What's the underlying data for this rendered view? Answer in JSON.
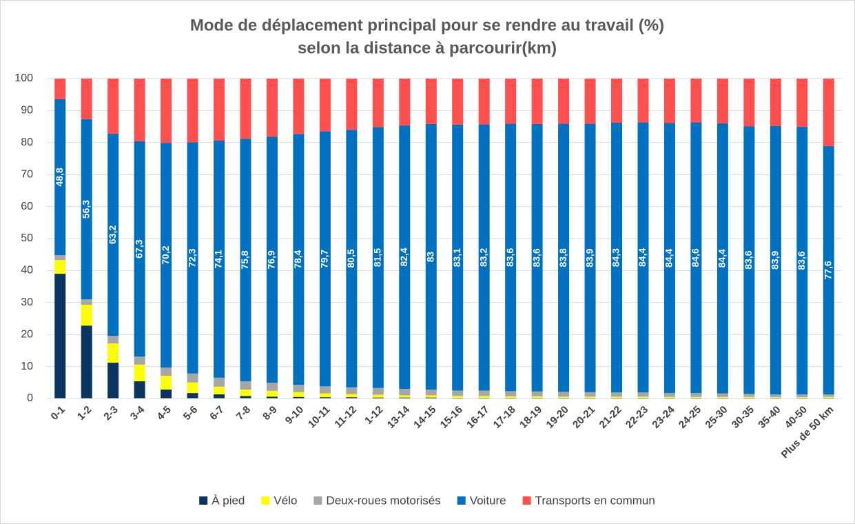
{
  "chart_data": {
    "type": "stacked_bar",
    "title": [
      "Mode de déplacement principal pour se rendre au travail (%)",
      "selon la distance à parcourir(km)"
    ],
    "categories": [
      "0-1",
      "1-2",
      "2-3",
      "3-4",
      "4-5",
      "5-6",
      "6-7",
      "7-8",
      "8-9",
      "9-10",
      "10-11",
      "11-12",
      "1-12",
      "13-14",
      "14-15",
      "15-16",
      "16-17",
      "17-18",
      "18-19",
      "19-20",
      "20-21",
      "21-22",
      "22-23",
      "23-24",
      "24-25",
      "25-30",
      "30-35",
      "35-40",
      "40-50",
      "Plus de 50 km"
    ],
    "series": [
      {
        "name": "À pied",
        "color": "#0b3560",
        "values": [
          39,
          22.8,
          11.2,
          5.4,
          2.8,
          1.7,
          1.3,
          0.8,
          0.6,
          0.5,
          0.4,
          0.4,
          0.3,
          0.3,
          0.3,
          0.2,
          0.2,
          0.2,
          0.2,
          0.2,
          0.2,
          0.2,
          0.2,
          0.2,
          0.2,
          0.2,
          0.2,
          0.2,
          0.2,
          0.2
        ]
      },
      {
        "name": "Vélo",
        "color": "#ffff00",
        "values": [
          4.3,
          6.5,
          6.0,
          5.2,
          4.3,
          3.3,
          2.4,
          2.0,
          1.8,
          1.5,
          1.2,
          1.0,
          0.9,
          0.7,
          0.7,
          0.6,
          0.6,
          0.5,
          0.5,
          0.4,
          0.4,
          0.4,
          0.4,
          0.3,
          0.3,
          0.3,
          0.3,
          0.2,
          0.2,
          0.3
        ]
      },
      {
        "name": "Deux-roues motorisés",
        "color": "#a6a6a6",
        "values": [
          1.5,
          1.7,
          2.4,
          2.5,
          2.6,
          2.8,
          2.8,
          2.6,
          2.5,
          2.3,
          2.2,
          2.1,
          2.1,
          2.0,
          1.8,
          1.7,
          1.7,
          1.6,
          1.5,
          1.5,
          1.4,
          1.3,
          1.3,
          1.2,
          1.2,
          1.1,
          1.0,
          0.9,
          0.9,
          0.8
        ]
      },
      {
        "name": "Voiture",
        "color": "#0070c0",
        "values": [
          48.8,
          56.3,
          63.2,
          67.3,
          70.2,
          72.3,
          74.1,
          75.8,
          76.9,
          78.4,
          79.7,
          80.5,
          81.5,
          82.4,
          83,
          83.1,
          83.2,
          83.6,
          83.6,
          83.8,
          83.9,
          84.3,
          84.4,
          84.4,
          84.6,
          84.4,
          83.6,
          83.9,
          83.6,
          77.6
        ],
        "value_labels": [
          "48,8",
          "56,3",
          "63,2",
          "67,3",
          "70,2",
          "72,3",
          "74,1",
          "75,8",
          "76,9",
          "78,4",
          "79,7",
          "80,5",
          "81,5",
          "82,4",
          "83",
          "83,1",
          "83,2",
          "83,6",
          "83,6",
          "83,8",
          "83,9",
          "84,3",
          "84,4",
          "84,4",
          "84,6",
          "84,4",
          "83,6",
          "83,9",
          "83,6",
          "77,6"
        ]
      },
      {
        "name": "Transports en commun",
        "color": "#ff5050",
        "values": [
          6.4,
          12.7,
          17.2,
          19.6,
          20.1,
          19.9,
          19.4,
          18.8,
          18.2,
          17.3,
          16.5,
          16.0,
          15.2,
          14.6,
          14.2,
          14.4,
          14.3,
          14.1,
          14.2,
          14.1,
          14.1,
          13.8,
          13.7,
          13.9,
          13.7,
          14.0,
          14.9,
          14.8,
          15.1,
          21.1
        ]
      }
    ],
    "ylim": [
      0,
      100
    ],
    "yticks": [
      0,
      10,
      20,
      30,
      40,
      50,
      60,
      70,
      80,
      90,
      100
    ],
    "grid": true,
    "legend": "bottom"
  }
}
